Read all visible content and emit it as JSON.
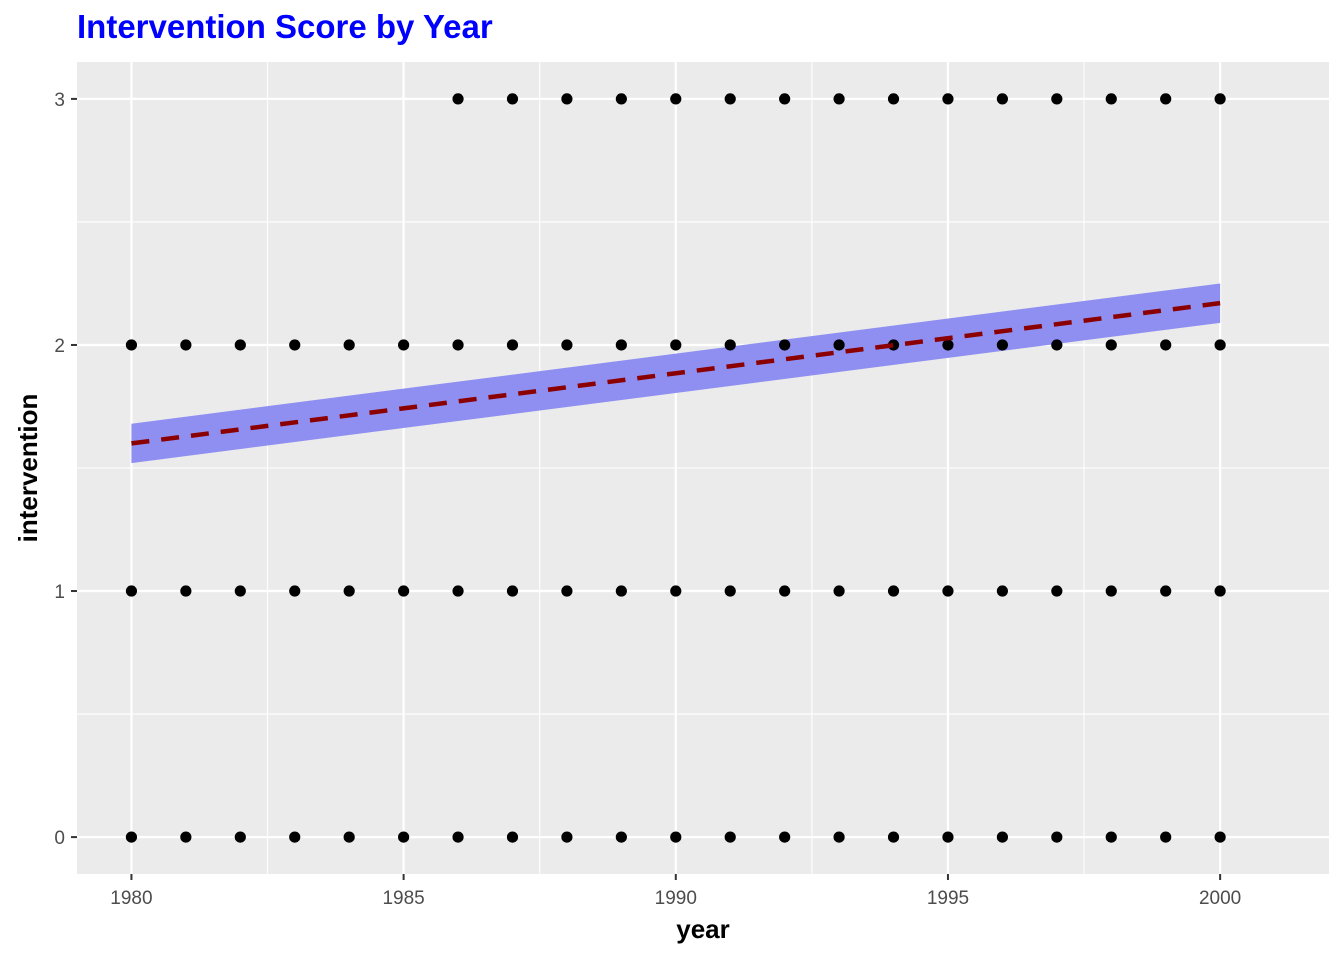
{
  "chart_data": {
    "type": "scatter",
    "title": "Intervention Score by Year",
    "xlabel": "year",
    "ylabel": "intervention",
    "xlim": [
      1979,
      2002
    ],
    "ylim": [
      -0.15,
      3.15
    ],
    "x_ticks": [
      1980,
      1985,
      1990,
      1995,
      2000
    ],
    "y_ticks": [
      0,
      1,
      2,
      3
    ],
    "grid": true,
    "legend": "none",
    "colors": {
      "title": "#0000ff",
      "panel": "#ebebeb",
      "grid": "#ffffff",
      "points": "#000000",
      "trend": "#8b0000",
      "band": "#8f8ff2"
    },
    "series": [
      {
        "kind": "points",
        "x": [
          1980,
          1981,
          1982,
          1983,
          1984,
          1985,
          1986,
          1987,
          1988,
          1989,
          1990,
          1991,
          1992,
          1993,
          1994,
          1995,
          1996,
          1997,
          1998,
          1999,
          2000,
          1980,
          1981,
          1982,
          1983,
          1984,
          1985,
          1986,
          1987,
          1988,
          1989,
          1990,
          1991,
          1992,
          1993,
          1994,
          1995,
          1996,
          1997,
          1998,
          1999,
          2000,
          1980,
          1981,
          1982,
          1983,
          1984,
          1985,
          1986,
          1987,
          1988,
          1989,
          1990,
          1991,
          1992,
          1993,
          1994,
          1995,
          1996,
          1997,
          1998,
          1999,
          2000,
          1986,
          1987,
          1988,
          1989,
          1990,
          1991,
          1992,
          1993,
          1994,
          1995,
          1996,
          1997,
          1998,
          1999,
          2000
        ],
        "y": [
          0,
          0,
          0,
          0,
          0,
          0,
          0,
          0,
          0,
          0,
          0,
          0,
          0,
          0,
          0,
          0,
          0,
          0,
          0,
          0,
          0,
          1,
          1,
          1,
          1,
          1,
          1,
          1,
          1,
          1,
          1,
          1,
          1,
          1,
          1,
          1,
          1,
          1,
          1,
          1,
          1,
          1,
          2,
          2,
          2,
          2,
          2,
          2,
          2,
          2,
          2,
          2,
          2,
          2,
          2,
          2,
          2,
          2,
          2,
          2,
          2,
          2,
          2,
          3,
          3,
          3,
          3,
          3,
          3,
          3,
          3,
          3,
          3,
          3,
          3,
          3,
          3,
          3
        ]
      },
      {
        "kind": "linear_fit",
        "x": [
          1980,
          2000
        ],
        "y": [
          1.6,
          2.17
        ],
        "band_lower": [
          1.52,
          2.09
        ],
        "band_upper": [
          1.68,
          2.25
        ],
        "line_style": "dashed"
      }
    ]
  }
}
